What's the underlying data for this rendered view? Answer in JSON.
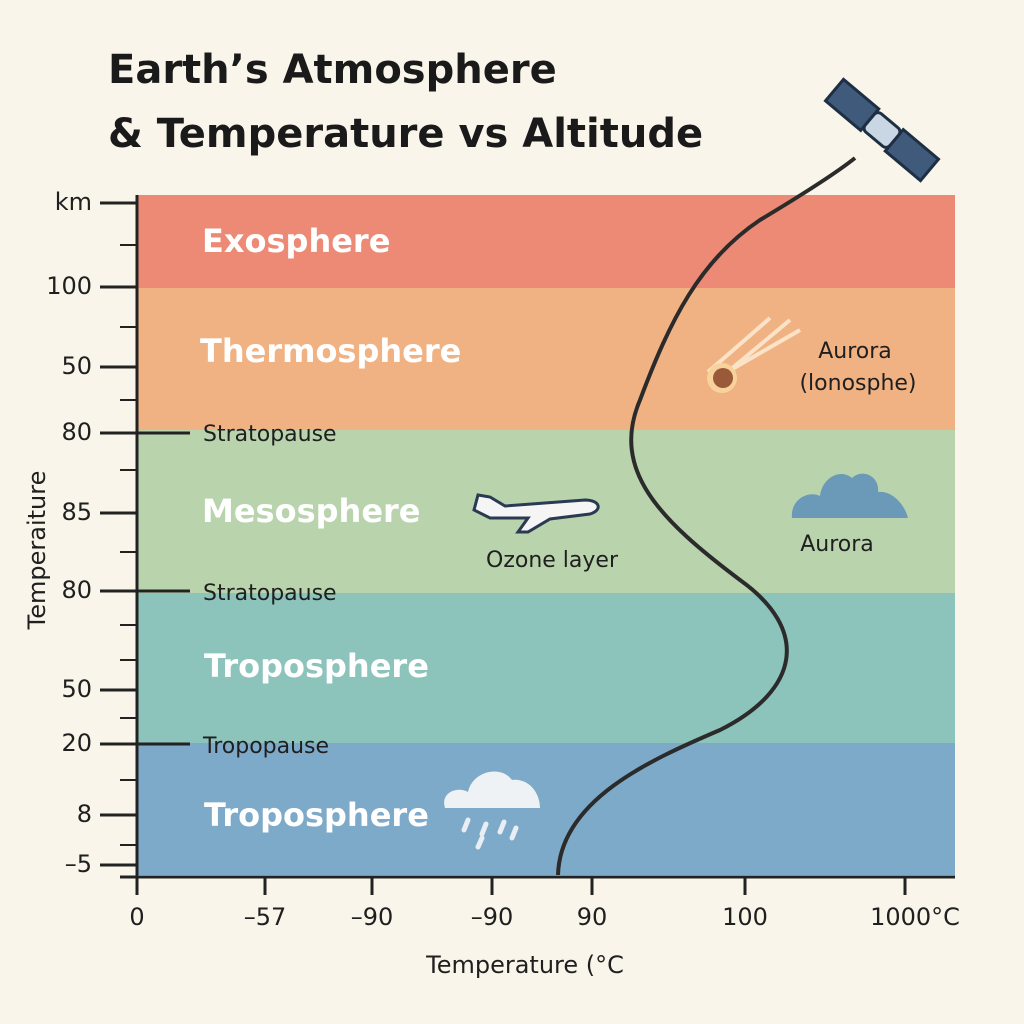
{
  "title": [
    "Earth’s Atmosphere",
    "& Temperature vs Altitude"
  ],
  "y_axis": {
    "label": "Temperaiture",
    "ticks": [
      "km",
      "100",
      "50",
      "80",
      "85",
      "80",
      "50",
      "20",
      "8",
      "–5"
    ]
  },
  "x_axis": {
    "label": "Temperature (°C",
    "ticks": [
      "0",
      "–57",
      "–90",
      "–90",
      "90",
      "100",
      "1000°C"
    ]
  },
  "layers": [
    "Exosphere",
    "Thermosphere",
    "Mesosphere",
    "Troposphere",
    "Troposphere"
  ],
  "boundaries": [
    "Stratopause",
    "Stratopause",
    "Tropopause"
  ],
  "annotations": {
    "aurora_top": "Aurora",
    "ionosphere": "(lonosphe)",
    "ozone": "Ozone layer",
    "aurora_mid": "Aurora"
  }
}
